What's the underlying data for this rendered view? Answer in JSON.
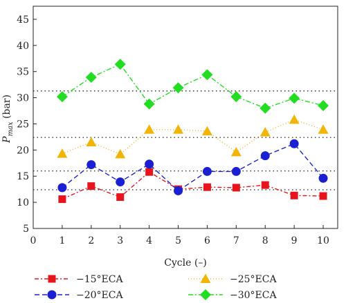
{
  "chart_data": {
    "type": "line",
    "title": "",
    "xlabel": "Cycle (–)",
    "ylabel_main": "P",
    "ylabel_sub": "max",
    "ylabel_unit": " (bar)",
    "xlim": [
      0,
      10.5
    ],
    "ylim": [
      5,
      47.5
    ],
    "xticks": [
      0,
      1,
      2,
      3,
      4,
      5,
      6,
      7,
      8,
      9,
      10
    ],
    "yticks": [
      5,
      10,
      15,
      20,
      25,
      30,
      35,
      40,
      45
    ],
    "x": [
      1,
      2,
      3,
      4,
      5,
      6,
      7,
      8,
      9,
      10
    ],
    "reference_lines": [
      12.4,
      16.0,
      22.4,
      31.3
    ],
    "grid": false,
    "legend_position": "bottom",
    "series": [
      {
        "name": "−15°ECA",
        "color": "#e8141c",
        "marker": "square",
        "dash": "6 3 2 3",
        "values": [
          10.6,
          13.1,
          11.0,
          15.8,
          12.5,
          12.9,
          12.8,
          13.3,
          11.3,
          11.2
        ]
      },
      {
        "name": "−20°ECA",
        "color": "#1a1fd1",
        "marker": "circle",
        "dash": "7 4",
        "values": [
          12.8,
          17.2,
          13.9,
          17.3,
          12.2,
          15.9,
          15.9,
          18.9,
          21.2,
          14.6
        ]
      },
      {
        "name": "−25°ECA",
        "color": "#f2b406",
        "marker": "triangle",
        "dash": "1 3",
        "values": [
          19.3,
          21.5,
          19.2,
          23.9,
          23.9,
          23.6,
          19.6,
          23.4,
          25.8,
          23.9
        ]
      },
      {
        "name": "−30°ECA",
        "color": "#22dd22",
        "marker": "diamond",
        "dash": "7 3 2 3",
        "values": [
          30.2,
          33.9,
          36.4,
          28.8,
          31.9,
          34.4,
          30.2,
          28.0,
          29.9,
          28.5
        ]
      }
    ]
  }
}
